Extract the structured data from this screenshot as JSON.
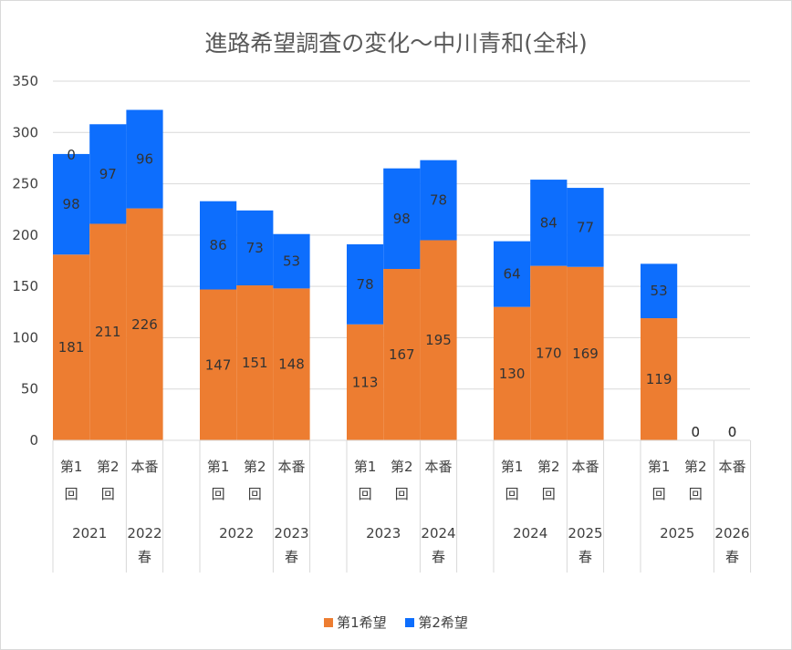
{
  "chart_data": {
    "type": "bar",
    "stacked": true,
    "title": "進路希望調査の変化～中川青和(全科)",
    "ylim": [
      0,
      350
    ],
    "yticks": [
      0,
      50,
      100,
      150,
      200,
      250,
      300,
      350
    ],
    "grid": true,
    "legend_position": "bottom",
    "groups": [
      {
        "year": "2021",
        "items": [
          {
            "label": [
              "第1",
              "回"
            ],
            "yearLabel": "",
            "v1": 181,
            "v2": 98,
            "total": 279
          },
          {
            "label": [
              "第2",
              "回"
            ],
            "yearLabel": "",
            "v1": 211,
            "v2": 97,
            "total": 308
          },
          {
            "label": [
              "本番"
            ],
            "yearLabel": [
              "2022",
              "春"
            ],
            "v1": 226,
            "v2": 96,
            "total": 322
          }
        ]
      },
      {
        "year": "2022",
        "items": [
          {
            "label": [
              "第1",
              "回"
            ],
            "yearLabel": "",
            "v1": 147,
            "v2": 86,
            "total": 233
          },
          {
            "label": [
              "第2",
              "回"
            ],
            "yearLabel": "",
            "v1": 151,
            "v2": 73,
            "total": 224
          },
          {
            "label": [
              "本番"
            ],
            "yearLabel": [
              "2023",
              "春"
            ],
            "v1": 148,
            "v2": 53,
            "total": 201
          }
        ]
      },
      {
        "year": "2023",
        "items": [
          {
            "label": [
              "第1",
              "回"
            ],
            "yearLabel": "",
            "v1": 113,
            "v2": 78,
            "total": 191
          },
          {
            "label": [
              "第2",
              "回"
            ],
            "yearLabel": "",
            "v1": 167,
            "v2": 98,
            "total": 265
          },
          {
            "label": [
              "本番"
            ],
            "yearLabel": [
              "2024",
              "春"
            ],
            "v1": 195,
            "v2": 78,
            "total": 273
          }
        ]
      },
      {
        "year": "2024",
        "items": [
          {
            "label": [
              "第1",
              "回"
            ],
            "yearLabel": "",
            "v1": 130,
            "v2": 64,
            "total": 194
          },
          {
            "label": [
              "第2",
              "回"
            ],
            "yearLabel": "",
            "v1": 170,
            "v2": 84,
            "total": 254
          },
          {
            "label": [
              "本番"
            ],
            "yearLabel": [
              "2025",
              "春"
            ],
            "v1": 169,
            "v2": 77,
            "total": 246
          }
        ]
      },
      {
        "year": "2025",
        "items": [
          {
            "label": [
              "第1",
              "回"
            ],
            "yearLabel": "",
            "v1": 119,
            "v2": 53,
            "total": 172
          },
          {
            "label": [
              "第2",
              "回"
            ],
            "yearLabel": "",
            "v1": 0,
            "v2": 0,
            "total": 0
          },
          {
            "label": [
              "本番"
            ],
            "yearLabel": [
              "2026",
              "春"
            ],
            "v1": 0,
            "v2": 0,
            "total": 0
          }
        ]
      }
    ],
    "series": [
      {
        "name": "第1希望",
        "color": "#ed7d31"
      },
      {
        "name": "第2希望",
        "color": "#0d6efd"
      }
    ],
    "extra_labels": [
      {
        "group": 0,
        "item": 0,
        "text": "0"
      }
    ]
  }
}
